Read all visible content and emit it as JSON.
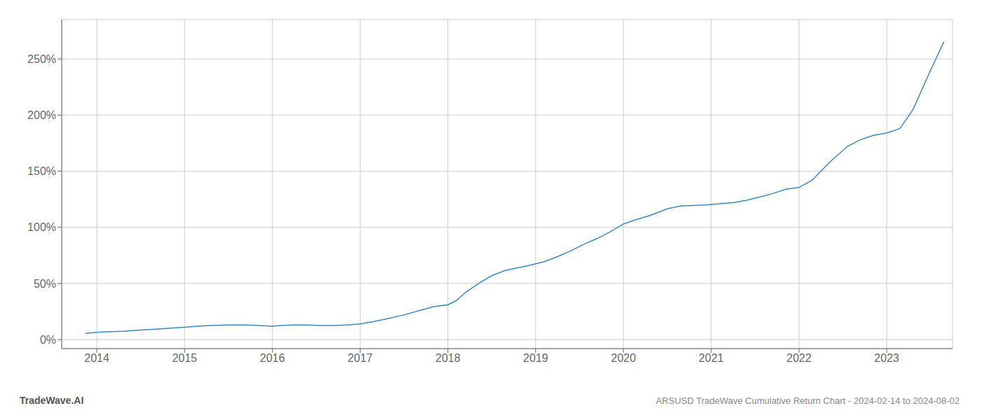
{
  "chart_data": {
    "type": "line",
    "title": "ARSUSD TradeWave Cumulative Return Chart - 2024-02-14 to 2024-08-02",
    "annotations": [
      "TradeWave.AI"
    ],
    "color": "#3a8abf",
    "grid": true,
    "xlim": [
      2013.6,
      2023.75
    ],
    "xticks": [
      2014,
      2015,
      2016,
      2017,
      2018,
      2019,
      2020,
      2021,
      2022,
      2023
    ],
    "ylim": [
      -8,
      285
    ],
    "yticks": [
      {
        "value": 0,
        "label": "0%"
      },
      {
        "value": 50,
        "label": "50%"
      },
      {
        "value": 100,
        "label": "100%"
      },
      {
        "value": 150,
        "label": "150%"
      },
      {
        "value": 200,
        "label": "200%"
      },
      {
        "value": 250,
        "label": "250%"
      }
    ],
    "x": [
      2013.87,
      2014.0,
      2014.1,
      2014.3,
      2014.5,
      2014.7,
      2014.9,
      2015.0,
      2015.15,
      2015.3,
      2015.5,
      2015.7,
      2015.85,
      2016.0,
      2016.1,
      2016.25,
      2016.4,
      2016.55,
      2016.7,
      2016.85,
      2017.0,
      2017.15,
      2017.3,
      2017.5,
      2017.7,
      2017.85,
      2018.0,
      2018.1,
      2018.2,
      2018.35,
      2018.5,
      2018.65,
      2018.8,
      2018.95,
      2019.1,
      2019.25,
      2019.4,
      2019.55,
      2019.7,
      2019.85,
      2020.0,
      2020.15,
      2020.3,
      2020.5,
      2020.65,
      2020.8,
      2020.95,
      2021.1,
      2021.25,
      2021.4,
      2021.55,
      2021.7,
      2021.85,
      2022.0,
      2022.15,
      2022.35,
      2022.55,
      2022.7,
      2022.85,
      2023.0,
      2023.15,
      2023.3,
      2023.5,
      2023.65
    ],
    "values": [
      5.5,
      6.5,
      7.0,
      7.5,
      8.5,
      9.5,
      10.5,
      11.0,
      12.0,
      12.5,
      13.0,
      13.0,
      12.5,
      12.0,
      12.5,
      13.0,
      13.0,
      12.5,
      12.5,
      13.0,
      14.0,
      16.0,
      18.5,
      22.0,
      26.5,
      29.5,
      31.0,
      35.0,
      42.0,
      50.0,
      57.0,
      61.5,
      64.0,
      66.5,
      69.5,
      74.0,
      79.0,
      85.0,
      90.0,
      96.0,
      103.0,
      107.0,
      110.5,
      116.5,
      119.0,
      119.5,
      120.0,
      121.0,
      122.0,
      124.0,
      127.0,
      130.0,
      134.0,
      135.5,
      142.0,
      158.0,
      172.0,
      178.0,
      182.0,
      184.0,
      188.0,
      205.0,
      240.0,
      265.0
    ]
  }
}
